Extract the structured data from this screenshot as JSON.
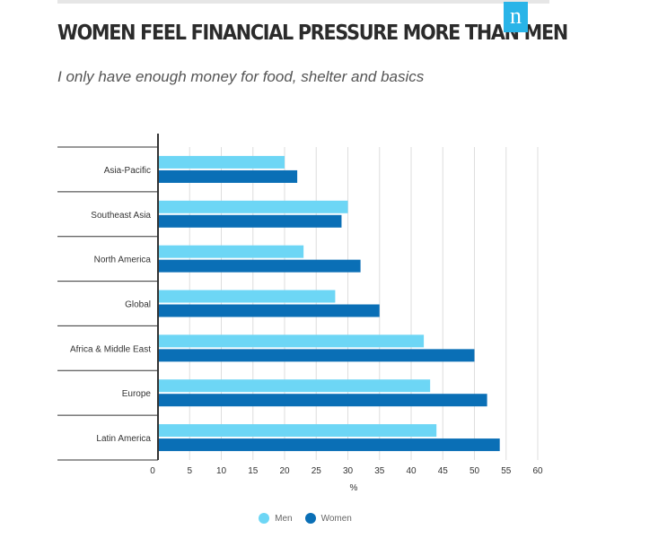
{
  "header": {
    "title": "WOMEN FEEL FINANCIAL PRESSURE MORE THAN MEN",
    "subtitle": "I only have enough money for food, shelter and basics",
    "logo_text": "n"
  },
  "colors": {
    "men": "#6dd6f5",
    "women": "#0a6fb6",
    "logo": "#29b4e8"
  },
  "chart_data": {
    "type": "bar",
    "orientation": "horizontal",
    "categories": [
      "Asia-Pacific",
      "Southeast Asia",
      "North America",
      "Global",
      "Africa & Middle East",
      "Europe",
      "Latin America"
    ],
    "series": [
      {
        "name": "Men",
        "values": [
          20,
          30,
          23,
          28,
          42,
          43,
          44
        ]
      },
      {
        "name": "Women",
        "values": [
          22,
          29,
          32,
          35,
          50,
          52,
          54
        ]
      }
    ],
    "xlabel": "%",
    "ylabel": "",
    "xlim": [
      0,
      60
    ],
    "xticks": [
      0,
      5,
      10,
      15,
      20,
      25,
      30,
      35,
      40,
      45,
      50,
      55,
      60
    ],
    "grid": true,
    "legend_position": "bottom"
  }
}
